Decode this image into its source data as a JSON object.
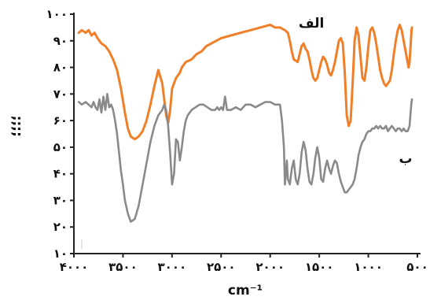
{
  "chart_data": {
    "type": "line",
    "title": "",
    "xlabel": "cm⁻¹",
    "ylabel": "؛؛؛؛",
    "xlim": [
      4000,
      500
    ],
    "ylim": [
      10,
      100
    ],
    "x_ticks": [
      4000,
      3500,
      3000,
      2500,
      2000,
      1500,
      1000,
      500
    ],
    "x_tick_labels": [
      "۴۰۰۰",
      "۳۵۰۰",
      "۳۰۰۰",
      "۲۵۰۰",
      "۲۰۰۰",
      "۱۵۰۰",
      "۱۰۰۰",
      "۵۰۰"
    ],
    "y_ticks": [
      10,
      20,
      30,
      40,
      50,
      60,
      70,
      80,
      90,
      100
    ],
    "y_tick_labels": [
      "۱۰",
      "۲۰",
      "۳۰",
      "۴۰",
      "۵۰",
      "۶۰",
      "۷۰",
      "۸۰",
      "۹۰",
      "۱۰۰"
    ],
    "grid": false,
    "series": [
      {
        "name": "الف",
        "color": "#f07f2a",
        "x": [
          3950,
          3920,
          3880,
          3850,
          3820,
          3790,
          3760,
          3720,
          3680,
          3640,
          3600,
          3560,
          3520,
          3480,
          3450,
          3420,
          3380,
          3340,
          3300,
          3260,
          3220,
          3180,
          3140,
          3100,
          3080,
          3060,
          3040,
          3020,
          3000,
          2980,
          2960,
          2940,
          2920,
          2900,
          2880,
          2860,
          2800,
          2750,
          2700,
          2650,
          2600,
          2500,
          2400,
          2300,
          2200,
          2100,
          2000,
          1950,
          1900,
          1850,
          1820,
          1800,
          1780,
          1760,
          1720,
          1700,
          1680,
          1660,
          1640,
          1620,
          1600,
          1580,
          1560,
          1540,
          1520,
          1500,
          1480,
          1460,
          1440,
          1420,
          1400,
          1380,
          1360,
          1340,
          1320,
          1300,
          1280,
          1260,
          1240,
          1220,
          1200,
          1180,
          1160,
          1140,
          1120,
          1100,
          1080,
          1060,
          1040,
          1020,
          1000,
          980,
          960,
          940,
          920,
          900,
          880,
          860,
          840,
          820,
          800,
          780,
          760,
          740,
          720,
          700,
          680,
          660,
          640,
          620,
          600,
          590,
          580,
          570,
          560,
          555
        ],
        "values": [
          93,
          94,
          93,
          94,
          92,
          93,
          91,
          89,
          88,
          86,
          83,
          79,
          72,
          63,
          57,
          54,
          53,
          54,
          56,
          60,
          66,
          73,
          79,
          74,
          68,
          62,
          59,
          64,
          72,
          74,
          76,
          77,
          78,
          80,
          81,
          82,
          83,
          85,
          86,
          88,
          89,
          91,
          92,
          93,
          94,
          95,
          96,
          95,
          95,
          94,
          93,
          90,
          86,
          83,
          82,
          85,
          88,
          89,
          87,
          86,
          83,
          79,
          76,
          75,
          76,
          79,
          82,
          84,
          83,
          81,
          78,
          77,
          79,
          82,
          86,
          90,
          91,
          89,
          78,
          62,
          58,
          60,
          74,
          90,
          95,
          92,
          84,
          76,
          75,
          80,
          88,
          94,
          95,
          93,
          89,
          84,
          79,
          76,
          74,
          73,
          74,
          75,
          79,
          85,
          90,
          94,
          96,
          94,
          90,
          86,
          82,
          80,
          82,
          88,
          94,
          95
        ]
      },
      {
        "name": "ب",
        "color": "#8a8a8a",
        "x": [
          3950,
          3920,
          3880,
          3850,
          3820,
          3800,
          3780,
          3760,
          3740,
          3720,
          3700,
          3680,
          3660,
          3640,
          3620,
          3600,
          3580,
          3560,
          3540,
          3520,
          3500,
          3480,
          3450,
          3420,
          3380,
          3340,
          3300,
          3260,
          3220,
          3180,
          3140,
          3100,
          3080,
          3060,
          3040,
          3020,
          3000,
          2980,
          2960,
          2940,
          2920,
          2900,
          2880,
          2860,
          2840,
          2820,
          2800,
          2760,
          2720,
          2680,
          2640,
          2600,
          2560,
          2540,
          2520,
          2500,
          2480,
          2460,
          2440,
          2400,
          2350,
          2300,
          2250,
          2200,
          2150,
          2100,
          2050,
          2000,
          1950,
          1900,
          1880,
          1860,
          1850,
          1840,
          1830,
          1820,
          1800,
          1780,
          1760,
          1740,
          1720,
          1700,
          1680,
          1660,
          1640,
          1620,
          1600,
          1580,
          1560,
          1540,
          1520,
          1500,
          1480,
          1460,
          1440,
          1420,
          1400,
          1380,
          1360,
          1340,
          1320,
          1300,
          1280,
          1260,
          1240,
          1220,
          1200,
          1180,
          1160,
          1140,
          1120,
          1100,
          1080,
          1060,
          1040,
          1020,
          1000,
          980,
          960,
          940,
          920,
          900,
          880,
          860,
          840,
          820,
          800,
          780,
          760,
          740,
          720,
          700,
          680,
          660,
          640,
          620,
          600,
          580,
          570,
          560,
          555
        ],
        "values": [
          67,
          66,
          67,
          66,
          65,
          67,
          65,
          64,
          68,
          63,
          69,
          64,
          70,
          65,
          66,
          64,
          60,
          55,
          48,
          41,
          36,
          30,
          25,
          22,
          23,
          28,
          36,
          44,
          52,
          58,
          62,
          64,
          66,
          64,
          58,
          48,
          36,
          40,
          53,
          52,
          45,
          50,
          56,
          60,
          62,
          63,
          64,
          65,
          66,
          66,
          65,
          64,
          64,
          65,
          64,
          65,
          64,
          69,
          64,
          64,
          65,
          64,
          66,
          66,
          65,
          66,
          67,
          67,
          66,
          66,
          60,
          50,
          36,
          40,
          45,
          38,
          36,
          42,
          45,
          38,
          36,
          40,
          48,
          52,
          49,
          42,
          37,
          36,
          40,
          46,
          50,
          46,
          38,
          37,
          42,
          45,
          42,
          40,
          43,
          45,
          44,
          40,
          37,
          35,
          33,
          33,
          34,
          35,
          36,
          38,
          42,
          47,
          50,
          52,
          53,
          55,
          56,
          56,
          57,
          57,
          58,
          57,
          58,
          57,
          57,
          58,
          56,
          57,
          58,
          57,
          56,
          57,
          57,
          56,
          57,
          56,
          56,
          58,
          63,
          67,
          68
        ]
      }
    ]
  }
}
